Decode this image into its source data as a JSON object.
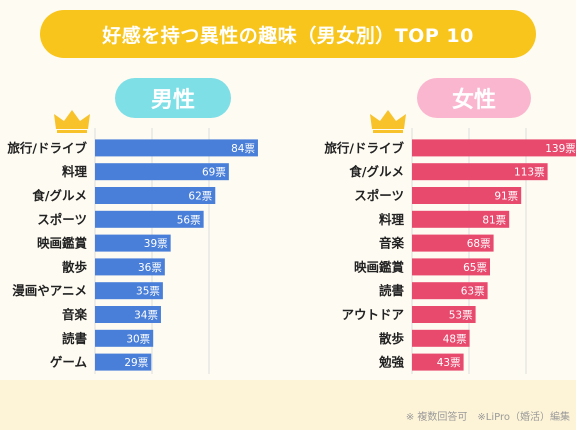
{
  "title": "好感を持つ異性の趣味（男女別）TOP 10",
  "footnote": "※ 複数回答可　※LiPro（婚活）編集",
  "colors": {
    "banner": "#f8c51c",
    "male_bar": "#4a7fd9",
    "female_bar": "#e84a6e",
    "male_pill": "#7fdfe6",
    "female_pill": "#fbb6cf",
    "crown": "#f7c22a"
  },
  "icons": [
    "crown-icon"
  ],
  "chart_data": [
    {
      "type": "bar",
      "orientation": "horizontal",
      "title": "男性",
      "unit": "票",
      "categories": [
        "旅行/ドライブ",
        "料理",
        "食/グルメ",
        "スポーツ",
        "映画鑑賞",
        "散歩",
        "漫画やアニメ",
        "音楽",
        "読書",
        "ゲーム"
      ],
      "values": [
        84,
        69,
        62,
        56,
        39,
        36,
        35,
        34,
        30,
        29
      ],
      "data_labels": [
        "84票",
        "69票",
        "62票",
        "56票",
        "39票",
        "36票",
        "35票",
        "34票",
        "30票",
        "29票"
      ]
    },
    {
      "type": "bar",
      "orientation": "horizontal",
      "title": "女性",
      "unit": "票",
      "categories": [
        "旅行/ドライブ",
        "食/グルメ",
        "スポーツ",
        "料理",
        "音楽",
        "映画鑑賞",
        "読書",
        "アウトドア",
        "散歩",
        "勉強"
      ],
      "values": [
        139,
        113,
        91,
        81,
        68,
        65,
        63,
        53,
        48,
        43
      ],
      "data_labels": [
        "139票",
        "113票",
        "91票",
        "81票",
        "68票",
        "65票",
        "63票",
        "53票",
        "48票",
        "43票"
      ]
    }
  ]
}
